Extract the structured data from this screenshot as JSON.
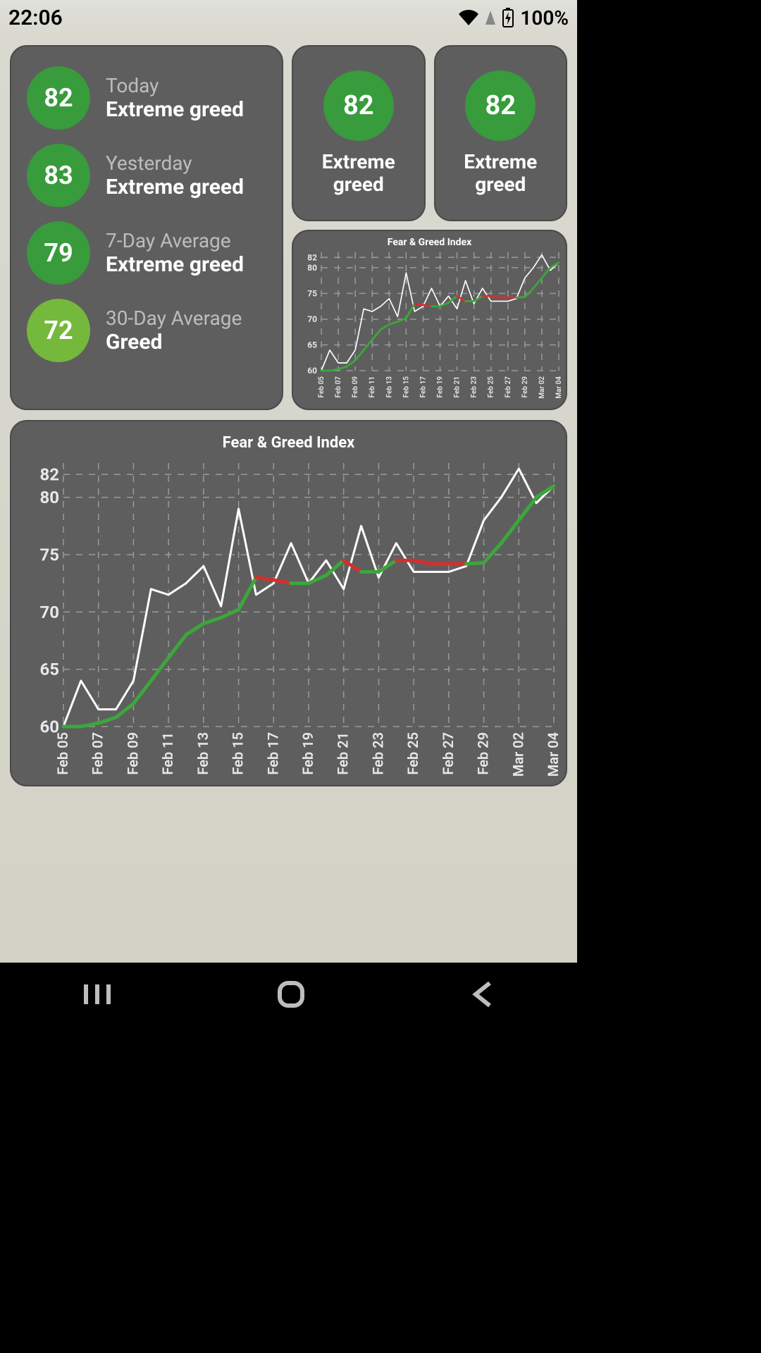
{
  "status": {
    "time": "22:06",
    "battery": "100%"
  },
  "colors": {
    "card_bg": "#5e5e5e",
    "green_dark": "#389b3c",
    "green_light": "#74b83c",
    "text_muted": "#bdbdbd",
    "text_white": "#ffffff"
  },
  "summary": {
    "items": [
      {
        "label": "Today",
        "value": "82",
        "status": "Extreme greed",
        "color": "#389b3c"
      },
      {
        "label": "Yesterday",
        "value": "83",
        "status": "Extreme greed",
        "color": "#389b3c"
      },
      {
        "label": "7-Day Average",
        "value": "79",
        "status": "Extreme greed",
        "color": "#389b3c"
      },
      {
        "label": "30-Day Average",
        "value": "72",
        "status": "Greed",
        "color": "#74b83c"
      }
    ]
  },
  "small_widgets": [
    {
      "value": "82",
      "status": "Extreme greed",
      "color": "#389b3c"
    },
    {
      "value": "82",
      "status": "Extreme greed",
      "color": "#389b3c"
    }
  ],
  "chart": {
    "title": "Fear & Greed Index",
    "type": "line",
    "ylim": [
      60,
      83
    ],
    "yticks": [
      60,
      65,
      70,
      75,
      80,
      82
    ],
    "xlabels": [
      "Feb 05",
      "Feb 07",
      "Feb 09",
      "Feb 11",
      "Feb 13",
      "Feb 15",
      "Feb 17",
      "Feb 19",
      "Feb 21",
      "Feb 23",
      "Feb 25",
      "Feb 27",
      "Feb 29",
      "Mar 02",
      "Mar 04"
    ],
    "grid_color": "#9a9a9a",
    "daily": {
      "color": "#ffffff",
      "width": 3,
      "values": [
        60.0,
        64.0,
        61.5,
        61.5,
        64.0,
        72.0,
        71.5,
        72.5,
        74.0,
        70.5,
        79.0,
        71.5,
        72.5,
        76.0,
        72.5,
        74.5,
        72.0,
        77.5,
        73.0,
        76.0,
        73.5,
        73.5,
        73.5,
        74.0,
        78.0,
        80.0,
        82.5,
        79.5,
        81.0
      ]
    },
    "ma": {
      "width": 5,
      "values": [
        60.0,
        60.0,
        60.3,
        60.8,
        62.0,
        64.0,
        66.0,
        68.0,
        69.0,
        69.5,
        70.2,
        73.0,
        72.8,
        72.5,
        72.5,
        73.2,
        74.5,
        73.5,
        73.5,
        74.5,
        74.5,
        74.2,
        74.2,
        74.2,
        74.3,
        76.0,
        78.0,
        80.0,
        81.0
      ],
      "seg_colors": [
        "#3aa83a",
        "#3aa83a",
        "#3aa83a",
        "#3aa83a",
        "#3aa83a",
        "#3aa83a",
        "#3aa83a",
        "#3aa83a",
        "#3aa83a",
        "#3aa83a",
        "#3aa83a",
        "#d82d2d",
        "#d82d2d",
        "#3aa83a",
        "#3aa83a",
        "#3aa83a",
        "#d82d2d",
        "#3aa83a",
        "#3aa83a",
        "#d82d2d",
        "#d82d2d",
        "#d82d2d",
        "#d82d2d",
        "#3aa83a",
        "#3aa83a",
        "#3aa83a",
        "#3aa83a",
        "#3aa83a"
      ]
    }
  }
}
